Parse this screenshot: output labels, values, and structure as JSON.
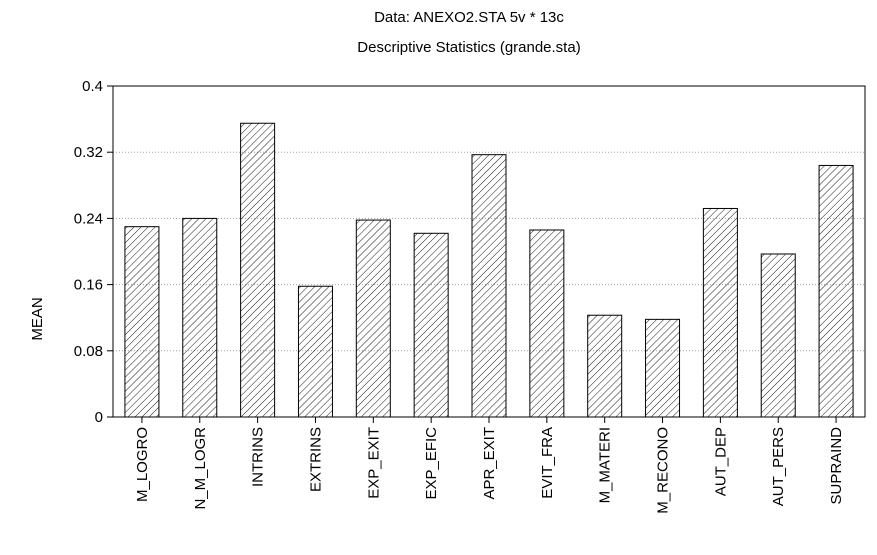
{
  "chart_data": {
    "type": "bar",
    "title": "Data: ANEXO2.STA 5v * 13c",
    "subtitle": "Descriptive Statistics (grande.sta)",
    "xlabel": "",
    "ylabel": "MEAN",
    "ylim": [
      0,
      0.4
    ],
    "yticks": [
      "0",
      "0.08",
      "0.16",
      "0.24",
      "0.32",
      "0.4"
    ],
    "grid": true,
    "bar_fill": "diagonal-hatch",
    "colors": {
      "bar_stroke": "#000000",
      "hatch": "#000000",
      "grid": "#a0a0a0",
      "background": "#ffffff"
    },
    "categories": [
      "M_LOGRO",
      "N_M_LOGR",
      "INTRINS",
      "EXTRINS",
      "EXP_EXIT",
      "EXP_EFIC",
      "APR_EXIT",
      "EVIT_FRA",
      "M_MATERI",
      "M_RECONO",
      "AUT_DEP",
      "AUT_PERS",
      "SUPRAIND"
    ],
    "values": [
      0.23,
      0.24,
      0.355,
      0.158,
      0.238,
      0.222,
      0.317,
      0.226,
      0.123,
      0.118,
      0.252,
      0.197,
      0.304
    ]
  }
}
